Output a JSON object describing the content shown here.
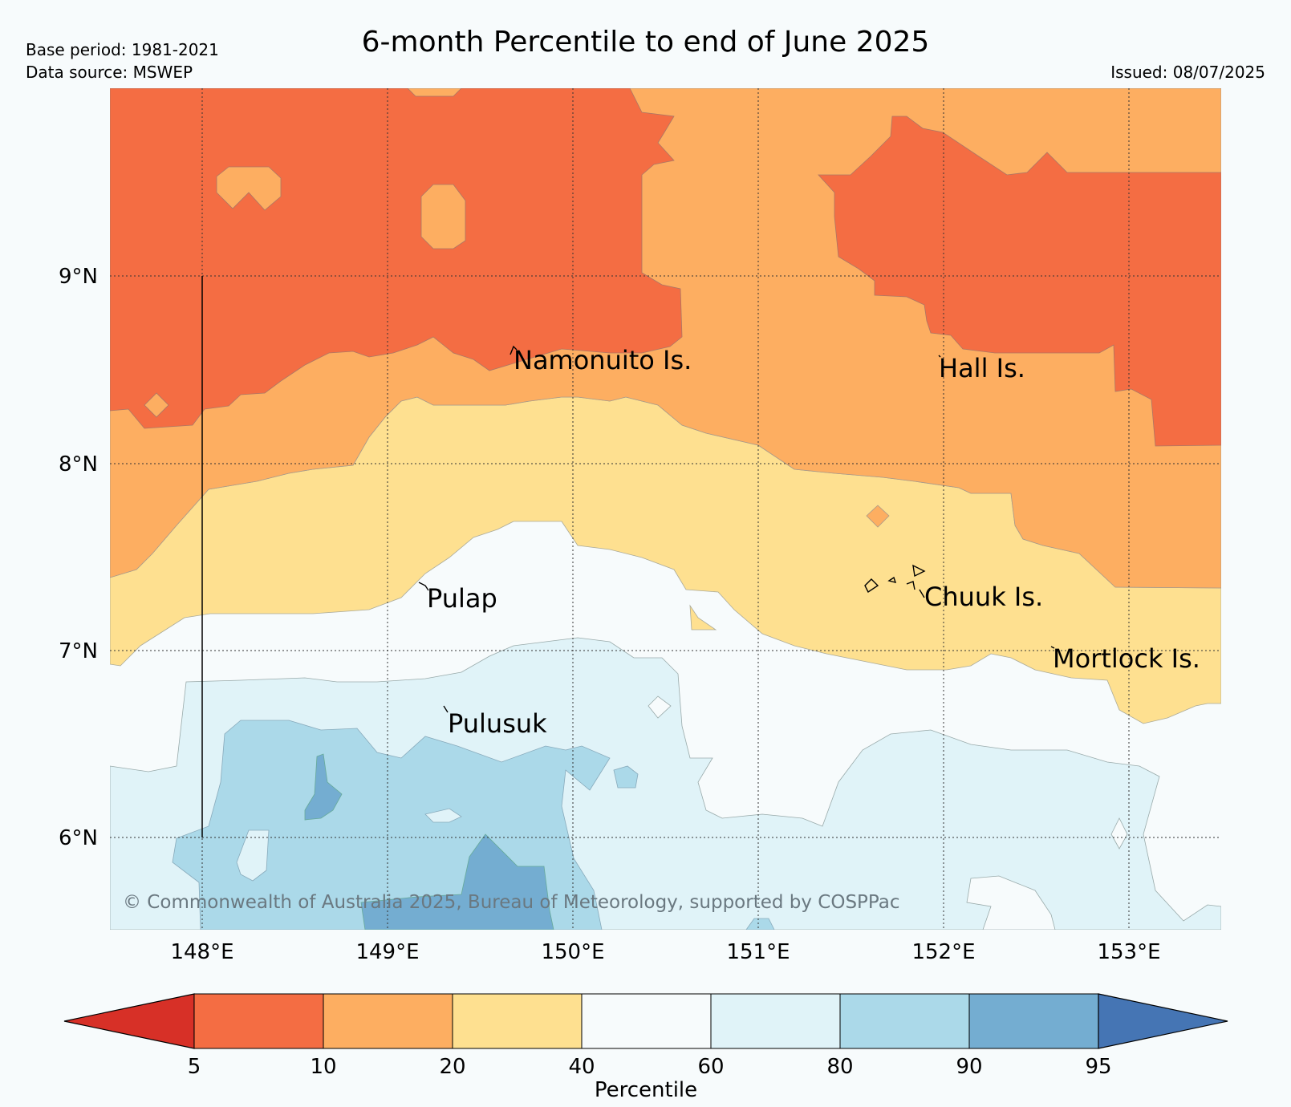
{
  "header": {
    "title": "6-month Percentile to end of June 2025",
    "base_period": "Base period: 1981-2021",
    "data_source": "Data source: MSWEP",
    "issued": "Issued: 08/07/2025"
  },
  "map": {
    "lat_labels": [
      "9°N",
      "8°N",
      "7°N",
      "6°N"
    ],
    "lon_labels": [
      "148°E",
      "149°E",
      "150°E",
      "151°E",
      "152°E",
      "153°E"
    ],
    "places": [
      {
        "name": "Namonuito Is."
      },
      {
        "name": "Hall Is."
      },
      {
        "name": "Pulap"
      },
      {
        "name": "Chuuk Is."
      },
      {
        "name": "Mortlock Is."
      },
      {
        "name": "Pulusuk"
      }
    ],
    "copyright": "© Commonwealth of Australia 2025, Bureau of Meteorology, supported by COSPPac"
  },
  "colorbar": {
    "label": "Percentile",
    "ticks": [
      "5",
      "10",
      "20",
      "40",
      "60",
      "80",
      "90",
      "95"
    ],
    "colors": {
      "below_5": "#d73027",
      "p5_10": "#f46d43",
      "p10_20": "#fdae61",
      "p20_40": "#fee090",
      "p40_60": "#f7fbfc",
      "p60_80": "#e0f3f8",
      "p80_90": "#abd9e9",
      "p90_95": "#74add1",
      "above_95": "#4575b4"
    }
  }
}
